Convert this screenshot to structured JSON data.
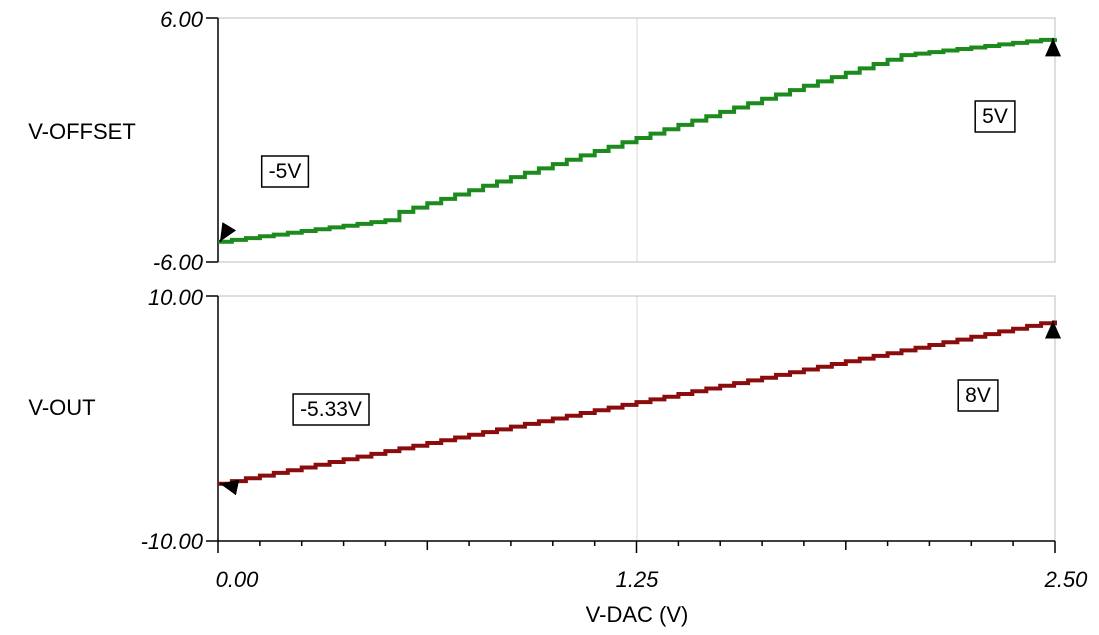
{
  "chart_data": [
    {
      "type": "line",
      "ylabel": "V-OFFSET",
      "ylim": [
        -6.0,
        6.0
      ],
      "ytick_labels": [
        "6.00",
        "-6.00"
      ],
      "xlim": [
        0.0,
        2.5
      ],
      "grid": "x",
      "colors": {
        "series": "#1d8a1d",
        "ylabel": "#000000"
      },
      "series": [
        {
          "x": [
            0.0,
            0.5,
            0.5,
            2.0,
            2.0,
            2.5
          ],
          "y": [
            -5.0,
            -3.95,
            -3.75,
            3.95,
            4.1,
            5.0
          ]
        }
      ],
      "annotations": [
        {
          "text": "-5V",
          "x": 0.0,
          "y": -5.0
        },
        {
          "text": "5V",
          "x": 2.5,
          "y": 5.0
        }
      ]
    },
    {
      "type": "line",
      "ylabel": "V-OUT",
      "ylim": [
        -10.0,
        10.0
      ],
      "ytick_labels": [
        "10.00",
        "-10.00"
      ],
      "xlim": [
        0.0,
        2.5
      ],
      "grid": "x",
      "xlabel": "V-DAC (V)",
      "xtick_labels": [
        "0.00",
        "1.25",
        "2.50"
      ],
      "colors": {
        "series": "#8b0c0c",
        "ylabel": "#8b0c0c"
      },
      "series": [
        {
          "x": [
            0.0,
            2.5
          ],
          "y": [
            -5.33,
            8.0
          ]
        }
      ],
      "annotations": [
        {
          "text": "-5.33V",
          "x": 0.0,
          "y": -5.33
        },
        {
          "text": "8V",
          "x": 2.5,
          "y": 8.0
        }
      ]
    }
  ]
}
